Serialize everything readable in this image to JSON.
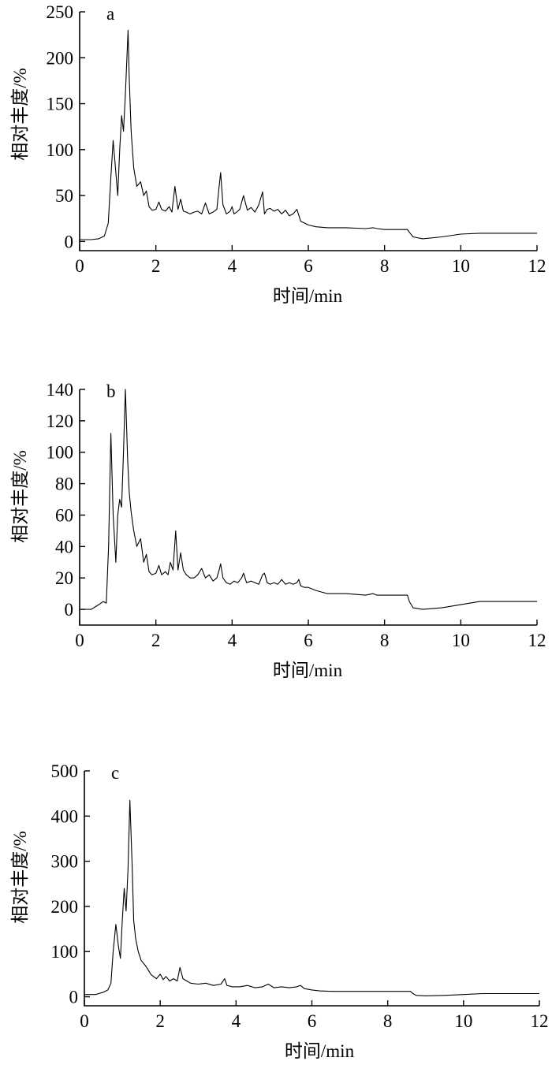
{
  "chart_data": [
    {
      "type": "line",
      "panel_label": "a",
      "xlabel": "时间/min",
      "ylabel": "相对丰度/%",
      "xlim": [
        0,
        12
      ],
      "ylim": [
        -10,
        250
      ],
      "xticks": [
        0,
        2,
        4,
        6,
        8,
        10,
        12
      ],
      "yticks": [
        0,
        50,
        100,
        150,
        200,
        250
      ],
      "series": [
        {
          "x": [
            0,
            0.3,
            0.5,
            0.65,
            0.75,
            0.82,
            0.88,
            0.95,
            1.0,
            1.05,
            1.1,
            1.15,
            1.2,
            1.27,
            1.3,
            1.35,
            1.42,
            1.5,
            1.6,
            1.68,
            1.75,
            1.82,
            1.9,
            2.0,
            2.08,
            2.15,
            2.25,
            2.35,
            2.42,
            2.5,
            2.58,
            2.65,
            2.72,
            2.8,
            2.9,
            3.0,
            3.1,
            3.2,
            3.3,
            3.4,
            3.5,
            3.6,
            3.66,
            3.7,
            3.76,
            3.85,
            3.95,
            4.0,
            4.05,
            4.12,
            4.2,
            4.3,
            4.4,
            4.5,
            4.6,
            4.7,
            4.8,
            4.85,
            4.92,
            5.0,
            5.1,
            5.2,
            5.3,
            5.4,
            5.5,
            5.6,
            5.7,
            5.8,
            5.9,
            6.0,
            6.2,
            6.5,
            7.0,
            7.5,
            7.7,
            7.8,
            8.0,
            8.5,
            8.6,
            8.65,
            8.75,
            9.0,
            9.5,
            10.0,
            10.5,
            11.0,
            12.0
          ],
          "y": [
            2,
            2,
            3,
            6,
            20,
            70,
            110,
            75,
            50,
            100,
            137,
            120,
            160,
            230,
            180,
            120,
            80,
            60,
            65,
            50,
            55,
            38,
            34,
            35,
            43,
            35,
            33,
            38,
            32,
            60,
            35,
            46,
            33,
            32,
            30,
            32,
            33,
            30,
            42,
            30,
            32,
            35,
            60,
            75,
            40,
            30,
            33,
            38,
            30,
            32,
            35,
            50,
            34,
            37,
            32,
            40,
            54,
            30,
            35,
            36,
            33,
            35,
            30,
            34,
            28,
            30,
            35,
            22,
            20,
            18,
            16,
            15,
            15,
            14,
            15,
            14,
            13,
            13,
            13,
            10,
            5,
            3,
            5,
            8,
            9,
            9,
            9
          ]
        }
      ]
    },
    {
      "type": "line",
      "panel_label": "b",
      "xlabel": "时间/min",
      "ylabel": "相对丰度/%",
      "xlim": [
        0,
        12
      ],
      "ylim": [
        -10,
        140
      ],
      "xticks": [
        0,
        2,
        4,
        6,
        8,
        10,
        12
      ],
      "yticks": [
        0,
        20,
        40,
        60,
        80,
        100,
        120,
        140
      ],
      "series": [
        {
          "x": [
            0,
            0.3,
            0.5,
            0.62,
            0.7,
            0.76,
            0.82,
            0.88,
            0.95,
            1.0,
            1.05,
            1.1,
            1.15,
            1.2,
            1.26,
            1.3,
            1.35,
            1.42,
            1.5,
            1.6,
            1.68,
            1.75,
            1.82,
            1.9,
            2.0,
            2.08,
            2.15,
            2.25,
            2.32,
            2.38,
            2.45,
            2.52,
            2.58,
            2.65,
            2.72,
            2.8,
            2.9,
            3.0,
            3.1,
            3.2,
            3.3,
            3.4,
            3.5,
            3.6,
            3.66,
            3.7,
            3.76,
            3.85,
            3.95,
            4.05,
            4.15,
            4.25,
            4.3,
            4.38,
            4.5,
            4.6,
            4.7,
            4.8,
            4.85,
            4.92,
            5.0,
            5.1,
            5.2,
            5.3,
            5.4,
            5.5,
            5.6,
            5.7,
            5.75,
            5.8,
            5.9,
            6.0,
            6.2,
            6.5,
            7.0,
            7.5,
            7.7,
            7.8,
            8.0,
            8.5,
            8.6,
            8.65,
            8.75,
            9.0,
            9.5,
            10.0,
            10.5,
            11.0,
            12.0
          ],
          "y": [
            0,
            0,
            3,
            5,
            4,
            40,
            112,
            60,
            30,
            60,
            70,
            65,
            100,
            140,
            95,
            75,
            62,
            50,
            40,
            45,
            30,
            35,
            24,
            22,
            23,
            28,
            22,
            24,
            22,
            30,
            25,
            50,
            25,
            36,
            25,
            22,
            20,
            20,
            22,
            26,
            20,
            22,
            18,
            20,
            25,
            29,
            20,
            17,
            16,
            18,
            17,
            20,
            23,
            17,
            18,
            17,
            16,
            22,
            23,
            17,
            16,
            17,
            16,
            19,
            16,
            17,
            16,
            17,
            19,
            15,
            14,
            14,
            12,
            10,
            10,
            9,
            10,
            9,
            9,
            9,
            9,
            5,
            1,
            0,
            1,
            3,
            5,
            5,
            5
          ]
        }
      ]
    },
    {
      "type": "line",
      "panel_label": "c",
      "xlabel": "时间/min",
      "ylabel": "相对丰度/%",
      "xlim": [
        0,
        12
      ],
      "ylim": [
        -20,
        500
      ],
      "xticks": [
        0,
        2,
        4,
        6,
        8,
        10,
        12
      ],
      "yticks": [
        0,
        100,
        200,
        300,
        400,
        500
      ],
      "series": [
        {
          "x": [
            0,
            0.3,
            0.5,
            0.62,
            0.7,
            0.76,
            0.83,
            0.9,
            0.95,
            1.0,
            1.05,
            1.1,
            1.15,
            1.2,
            1.26,
            1.3,
            1.35,
            1.42,
            1.5,
            1.6,
            1.68,
            1.75,
            1.82,
            1.9,
            2.0,
            2.08,
            2.15,
            2.25,
            2.35,
            2.45,
            2.52,
            2.6,
            2.7,
            2.8,
            3.0,
            3.2,
            3.4,
            3.6,
            3.66,
            3.7,
            3.76,
            3.9,
            4.1,
            4.3,
            4.5,
            4.7,
            4.85,
            5.0,
            5.2,
            5.4,
            5.6,
            5.7,
            5.8,
            6.0,
            6.2,
            6.5,
            7.0,
            7.5,
            8.0,
            8.5,
            8.6,
            8.65,
            8.75,
            9.0,
            9.5,
            10.0,
            10.5,
            11.0,
            12.0
          ],
          "y": [
            5,
            5,
            10,
            15,
            30,
            100,
            160,
            110,
            85,
            170,
            240,
            190,
            280,
            435,
            290,
            170,
            130,
            100,
            80,
            70,
            60,
            50,
            45,
            40,
            50,
            38,
            45,
            35,
            40,
            35,
            65,
            40,
            35,
            30,
            28,
            30,
            25,
            28,
            35,
            40,
            25,
            22,
            22,
            25,
            20,
            22,
            28,
            20,
            22,
            20,
            22,
            25,
            18,
            15,
            13,
            12,
            12,
            12,
            12,
            12,
            12,
            8,
            3,
            2,
            3,
            5,
            7,
            7,
            7
          ]
        }
      ]
    }
  ]
}
